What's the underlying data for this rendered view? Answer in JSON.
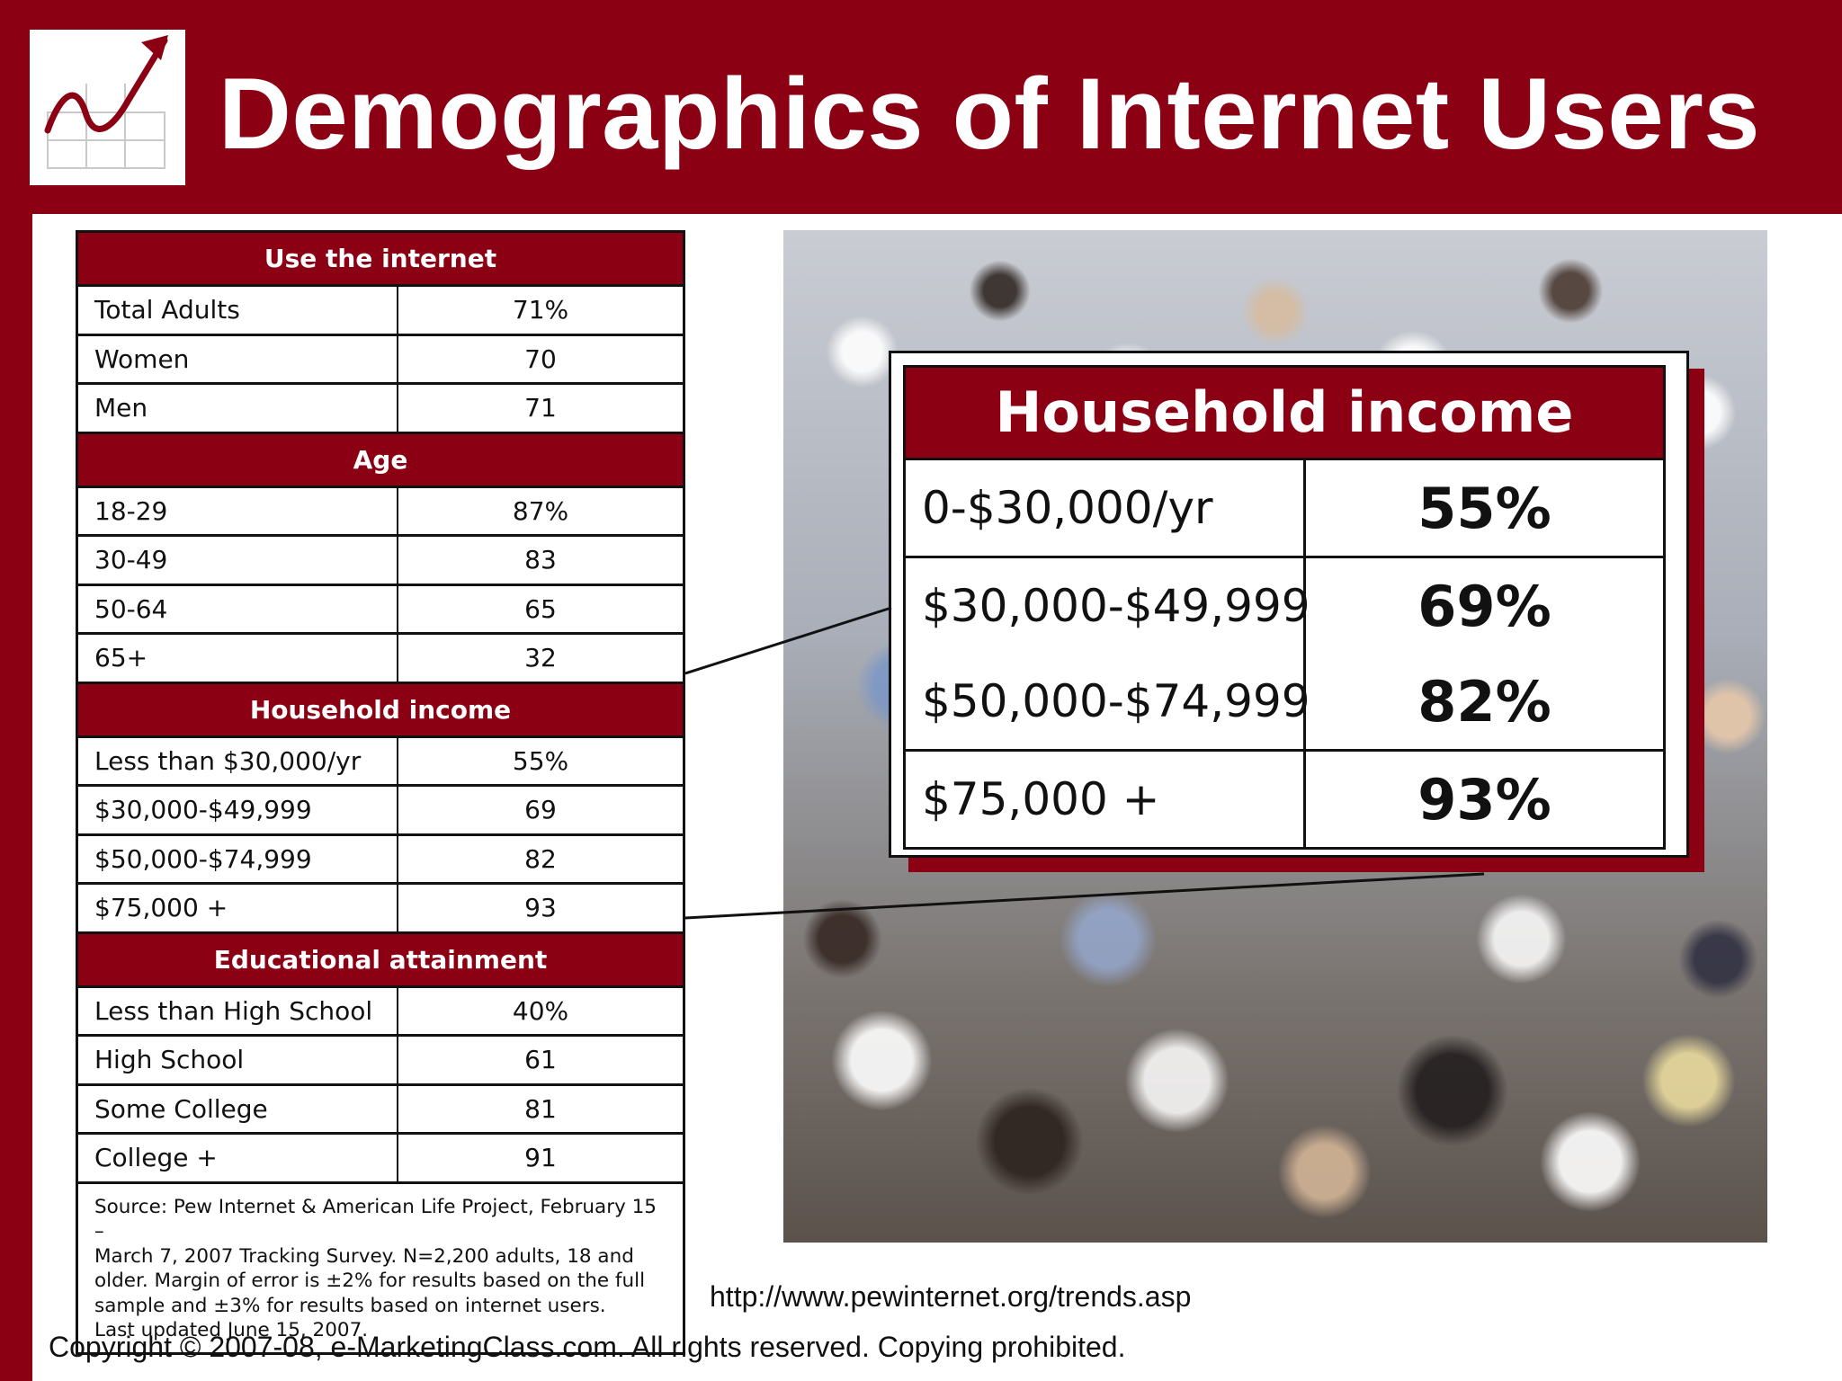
{
  "slide": {
    "title": "Demographics of Internet Users",
    "colors": {
      "accent": "#8c0014",
      "background": "#ffffff"
    },
    "logo_icon": "trend-up-chart-icon"
  },
  "table": {
    "sections": [
      {
        "heading": "Use the internet",
        "rows": [
          {
            "label": "Total Adults",
            "value": "71%"
          },
          {
            "label": "Women",
            "value": "70"
          },
          {
            "label": "Men",
            "value": "71"
          }
        ]
      },
      {
        "heading": "Age",
        "rows": [
          {
            "label": "18-29",
            "value": "87%"
          },
          {
            "label": "30-49",
            "value": "83"
          },
          {
            "label": "50-64",
            "value": "65"
          },
          {
            "label": "65+",
            "value": "32"
          }
        ]
      },
      {
        "heading": "Household income",
        "rows": [
          {
            "label": "Less than $30,000/yr",
            "value": "55%"
          },
          {
            "label": "$30,000-$49,999",
            "value": "69"
          },
          {
            "label": "$50,000-$74,999",
            "value": "82"
          },
          {
            "label": "$75,000 +",
            "value": "93"
          }
        ]
      },
      {
        "heading": "Educational attainment",
        "rows": [
          {
            "label": "Less than High School",
            "value": "40%"
          },
          {
            "label": "High School",
            "value": "61"
          },
          {
            "label": "Some College",
            "value": "81"
          },
          {
            "label": "College +",
            "value": "91"
          }
        ]
      }
    ],
    "source_lines": [
      "Source:  Pew Internet & American Life Project, February 15 –",
      "March 7, 2007 Tracking Survey.  N=2,200 adults, 18 and",
      "older. Margin of error is ±2% for results based on the full",
      "sample and ±3% for results based on internet users.",
      "Last updated June 15, 2007."
    ]
  },
  "callout": {
    "heading": "Household income",
    "rows": [
      {
        "label": "0-$30,000/yr",
        "value": "55%"
      },
      {
        "label": "$30,000-$49,999",
        "value": "69%"
      },
      {
        "label": "$50,000-$74,999",
        "value": "82%"
      },
      {
        "label": "$75,000 +",
        "value": "93%"
      }
    ]
  },
  "footer": {
    "url": "http://www.pewinternet.org/trends.asp",
    "copyright": "Copyright © 2007-08, e-MarketingClass.com. All rights reserved. Copying prohibited."
  }
}
